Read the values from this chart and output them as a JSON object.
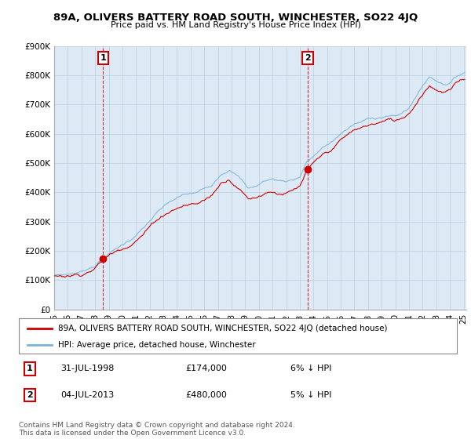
{
  "title": "89A, OLIVERS BATTERY ROAD SOUTH, WINCHESTER, SO22 4JQ",
  "subtitle": "Price paid vs. HM Land Registry's House Price Index (HPI)",
  "hpi_label": "HPI: Average price, detached house, Winchester",
  "property_label": "89A, OLIVERS BATTERY ROAD SOUTH, WINCHESTER, SO22 4JQ (detached house)",
  "sale1_date": "31-JUL-1998",
  "sale1_price": "£174,000",
  "sale1_hpi": "6% ↓ HPI",
  "sale2_date": "04-JUL-2013",
  "sale2_price": "£480,000",
  "sale2_hpi": "5% ↓ HPI",
  "copyright": "Contains HM Land Registry data © Crown copyright and database right 2024.\nThis data is licensed under the Open Government Licence v3.0.",
  "hpi_color": "#7ab4d8",
  "property_color": "#cc0000",
  "sale_marker_color": "#cc0000",
  "bg_color": "#ffffff",
  "chart_bg_color": "#ddeaf5",
  "grid_color": "#b8cfe0",
  "ylim": [
    0,
    900000
  ],
  "yticks": [
    0,
    100000,
    200000,
    300000,
    400000,
    500000,
    600000,
    700000,
    800000,
    900000
  ],
  "xlim_start": 1995.0,
  "xlim_end": 2025.2
}
